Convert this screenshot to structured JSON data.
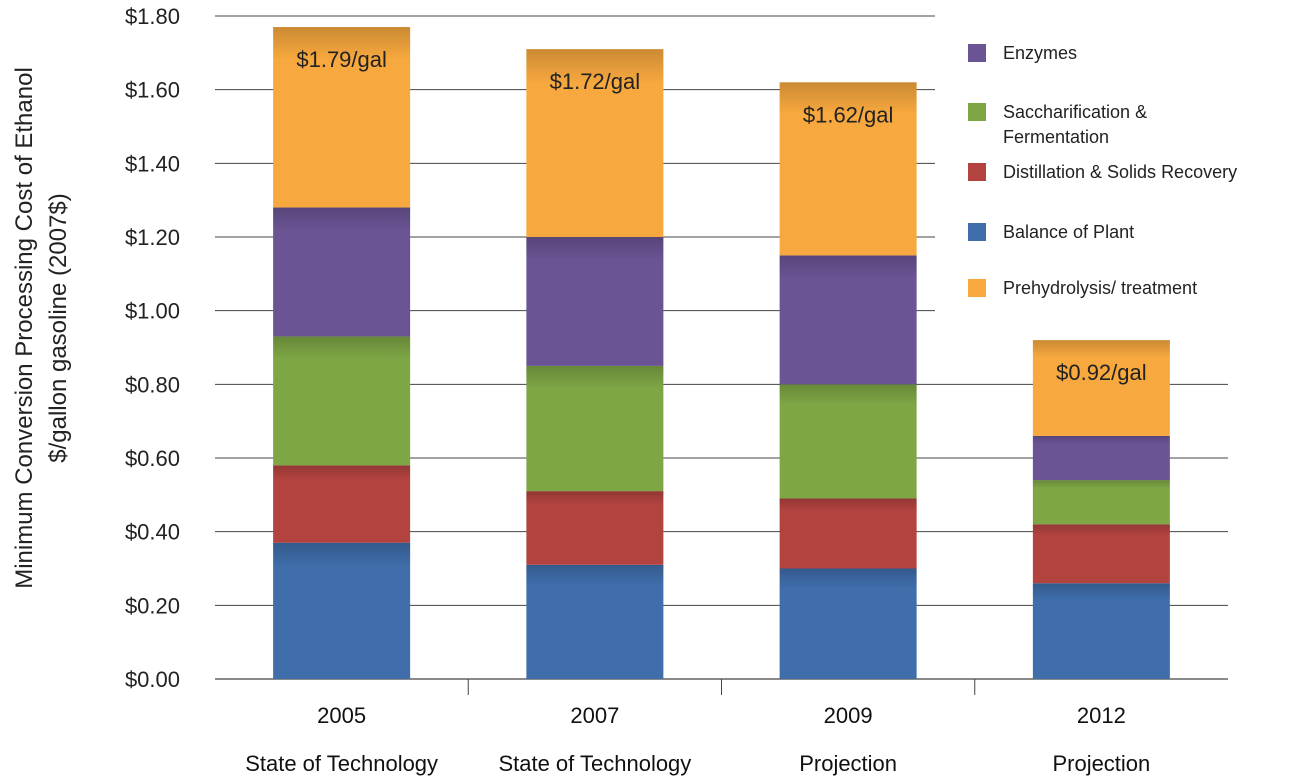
{
  "chart_data": {
    "type": "bar",
    "stacked": true,
    "title": "",
    "ylabel": "Minimum Conversion Processing Cost of Ethanol",
    "ylabel2": "$/gallon gasoline (2007$)",
    "xlabel": "",
    "ylim": [
      0,
      1.8
    ],
    "ytick_step": 0.2,
    "ytick_labels": [
      "$0.00",
      "$0.20",
      "$0.40",
      "$0.60",
      "$0.80",
      "$1.00",
      "$1.20",
      "$1.40",
      "$1.60",
      "$1.80"
    ],
    "grid": true,
    "legend_position": "top-right",
    "categories": [
      "2005",
      "2007",
      "2009",
      "2012"
    ],
    "category_sublabels": [
      "State of Technology",
      "State of Technology",
      "Projection",
      "Projection"
    ],
    "total_labels": [
      "$1.79/gal",
      "$1.72/gal",
      "$1.62/gal",
      "$0.92/gal"
    ],
    "series": [
      {
        "name": "Balance of Plant",
        "color": "#3f6eab",
        "values": [
          0.37,
          0.31,
          0.3,
          0.26
        ]
      },
      {
        "name": "Distillation & Solids Recovery",
        "color": "#b2433f",
        "values": [
          0.21,
          0.2,
          0.19,
          0.16
        ]
      },
      {
        "name": "Saccharification & Fermentation",
        "color": "#7ea645",
        "values": [
          0.35,
          0.34,
          0.31,
          0.12
        ]
      },
      {
        "name": "Enzymes",
        "color": "#6a5494",
        "values": [
          0.35,
          0.35,
          0.35,
          0.12
        ]
      },
      {
        "name": "Prehydrolysis/ treatment",
        "color": "#f7a83e",
        "values": [
          0.49,
          0.51,
          0.47,
          0.26
        ]
      }
    ],
    "legend_order": [
      "Enzymes",
      "Saccharification & Fermentation",
      "Distillation & Solids Recovery",
      "Balance of Plant",
      "Prehydrolysis/ treatment"
    ],
    "legend_lines": [
      [
        "Enzymes"
      ],
      [
        "Saccharification &",
        "Fermentation"
      ],
      [
        "Distillation & Solids Recovery"
      ],
      [
        "Balance of Plant"
      ],
      [
        "Prehydrolysis/ treatment"
      ]
    ]
  }
}
